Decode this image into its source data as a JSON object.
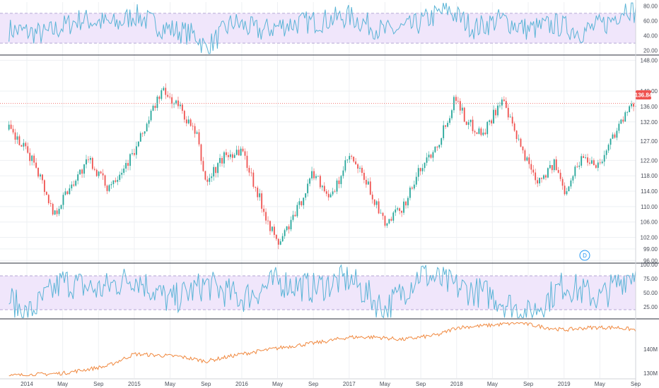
{
  "colors": {
    "background": "#ffffff",
    "grid": "#eef0f3",
    "divider": "#2a2e39",
    "axis_text": "#4a4e59",
    "candle_up": "#26a69a",
    "candle_down": "#ef5350",
    "oscillator_line": "#5ab4d6",
    "band_fill": "#f0e6fb",
    "band_border": "#9e8fc9",
    "price_line": "#ef5350",
    "volume_line": "#f0883e",
    "badge_bg": "#ef5350",
    "badge_text": "#ffffff",
    "marker": "#2196f3"
  },
  "price_badge": "136.84",
  "marker_label": "D",
  "chart_data": [
    {
      "type": "line",
      "panel": "top-oscillator",
      "y_ticks": [
        "80.00",
        "60.00",
        "40.00",
        "20.00"
      ],
      "ylim": [
        15,
        85
      ],
      "band": [
        30,
        70
      ],
      "series": [
        {
          "x": [
            "2013-11",
            "2014-03",
            "2014-07",
            "2014-11",
            "2015-01",
            "2015-04",
            "2015-08",
            "2015-09",
            "2015-12",
            "2016-03",
            "2016-06",
            "2016-10",
            "2017-01",
            "2017-05",
            "2017-08",
            "2017-12",
            "2018-03",
            "2018-06",
            "2018-09",
            "2018-12",
            "2019-03",
            "2019-06",
            "2019-08",
            "2019-09"
          ],
          "values": [
            48,
            42,
            62,
            55,
            68,
            52,
            40,
            22,
            58,
            46,
            55,
            60,
            66,
            45,
            52,
            75,
            50,
            62,
            48,
            55,
            45,
            58,
            80,
            70
          ]
        }
      ]
    },
    {
      "type": "candlestick",
      "panel": "price",
      "y_ticks": [
        "148.00",
        "140.00",
        "136.00",
        "132.00",
        "127.00",
        "122.00",
        "118.00",
        "114.00",
        "110.00",
        "106.00",
        "102.00",
        "99.00",
        "96.00"
      ],
      "ylim": [
        95.5,
        149
      ],
      "last_value": 136.84,
      "series": [
        {
          "x": [
            "2013-11",
            "2014-02",
            "2014-04",
            "2014-06",
            "2014-08",
            "2014-10",
            "2015-01",
            "2015-04",
            "2015-06",
            "2015-08",
            "2015-09",
            "2015-11",
            "2016-01",
            "2016-03",
            "2016-05",
            "2016-07",
            "2016-09",
            "2016-11",
            "2017-01",
            "2017-03",
            "2017-05",
            "2017-07",
            "2017-09",
            "2017-11",
            "2018-01",
            "2018-02",
            "2018-04",
            "2018-06",
            "2018-08",
            "2018-10",
            "2018-12",
            "2019-01",
            "2019-03",
            "2019-05",
            "2019-07",
            "2019-09"
          ],
          "values": [
            130,
            121,
            108,
            116,
            122,
            115,
            124,
            140,
            136,
            128,
            116,
            123,
            125,
            112,
            100,
            108,
            119,
            112,
            123,
            116,
            105,
            110,
            120,
            127,
            139,
            132,
            129,
            138,
            126,
            117,
            121,
            114,
            123,
            121,
            131,
            137
          ]
        }
      ]
    },
    {
      "type": "line",
      "panel": "lower-oscillator",
      "y_ticks": [
        "100.00",
        "75.00",
        "50.00",
        "25.00"
      ],
      "ylim": [
        5,
        100
      ],
      "band": [
        20,
        80
      ],
      "series": [
        {
          "x": [
            "2013-11",
            "2014-01",
            "2014-05",
            "2014-09",
            "2015-01",
            "2015-05",
            "2015-09",
            "2016-01",
            "2016-05",
            "2016-09",
            "2017-01",
            "2017-05",
            "2017-09",
            "2018-01",
            "2018-05",
            "2018-09",
            "2019-01",
            "2019-05",
            "2019-08",
            "2019-09"
          ],
          "values": [
            40,
            10,
            70,
            55,
            78,
            35,
            65,
            40,
            70,
            58,
            75,
            20,
            85,
            60,
            45,
            10,
            65,
            40,
            80,
            88
          ]
        }
      ]
    },
    {
      "type": "line",
      "panel": "volume",
      "y_ticks": [
        "140M",
        "130M"
      ],
      "ylim": [
        128,
        152
      ],
      "series": [
        {
          "x": [
            "2013-11",
            "2014-05",
            "2014-10",
            "2015-01",
            "2015-06",
            "2015-09",
            "2016-01",
            "2016-06",
            "2016-10",
            "2017-01",
            "2017-04",
            "2017-07",
            "2017-11",
            "2018-01",
            "2018-05",
            "2018-08",
            "2018-11",
            "2019-01",
            "2019-04",
            "2019-07",
            "2019-09"
          ],
          "values": [
            129,
            130,
            133,
            138,
            137,
            135,
            138,
            141,
            143,
            145,
            145,
            144,
            146,
            149,
            150,
            151,
            149,
            148,
            149,
            149,
            148
          ]
        }
      ]
    }
  ],
  "x_axis": {
    "labels": [
      "2014",
      "May",
      "Sep",
      "2015",
      "May",
      "Sep",
      "2016",
      "May",
      "Sep",
      "2017",
      "May",
      "Sep",
      "2018",
      "May",
      "Sep",
      "2019",
      "May",
      "Sep"
    ],
    "dates": [
      "2014-01",
      "2014-05",
      "2014-09",
      "2015-01",
      "2015-05",
      "2015-09",
      "2016-01",
      "2016-05",
      "2016-09",
      "2017-01",
      "2017-05",
      "2017-09",
      "2018-01",
      "2018-05",
      "2018-09",
      "2019-01",
      "2019-05",
      "2019-09"
    ],
    "range": [
      "2013-10",
      "2019-09"
    ]
  }
}
